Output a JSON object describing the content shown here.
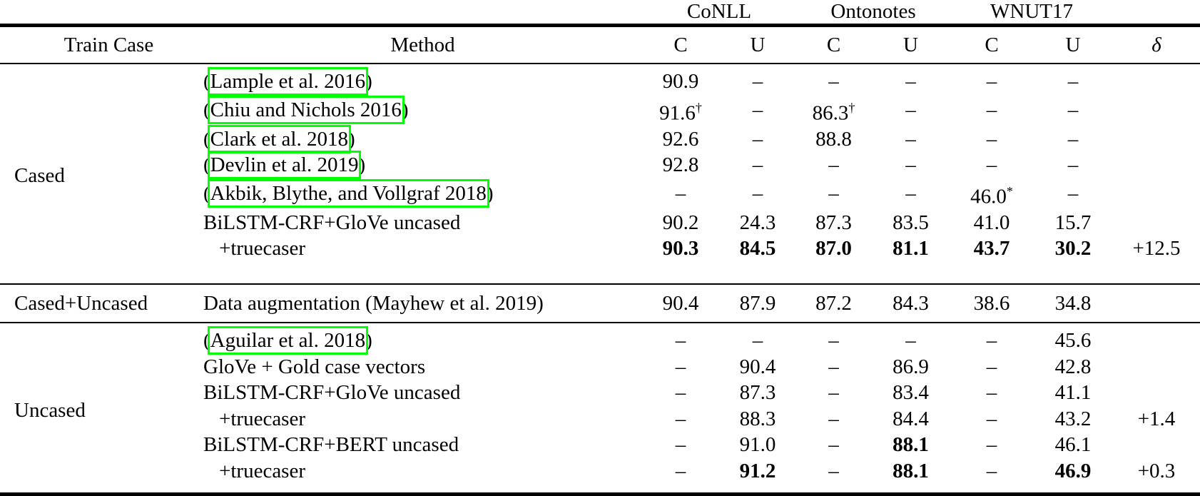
{
  "accent_colors": {
    "citation_link_box": "#00ff00",
    "rule_color": "#000000"
  },
  "table": {
    "groups": [
      "CoNLL",
      "Ontonotes",
      "WNUT17"
    ],
    "headers": [
      "Train Case",
      "Method",
      "C",
      "U",
      "C",
      "U",
      "C",
      "U",
      "δ"
    ],
    "missing_value_glyph": "–",
    "sections": [
      {
        "train_case": "Cased",
        "rows": [
          {
            "method": {
              "pre": "(",
              "link": "Lample et al. 2016",
              "post": ")"
            },
            "values": [
              "90.9",
              "–",
              "–",
              "–",
              "–",
              "–"
            ],
            "delta": ""
          },
          {
            "method": {
              "pre": "(",
              "link": "Chiu and Nichols 2016",
              "post": ")"
            },
            "values": [
              {
                "v": "91.6",
                "sup": "†"
              },
              "–",
              {
                "v": "86.3",
                "sup": "†"
              },
              "–",
              "–",
              "–"
            ],
            "delta": ""
          },
          {
            "method": {
              "pre": "(",
              "link": "Clark et al. 2018",
              "post": ")"
            },
            "values": [
              "92.6",
              "–",
              "88.8",
              "–",
              "–",
              "–"
            ],
            "delta": ""
          },
          {
            "method": {
              "pre": "(",
              "link": "Devlin et al. 2019",
              "post": ")"
            },
            "values": [
              "92.8",
              "–",
              "–",
              "–",
              "–",
              "–"
            ],
            "delta": ""
          },
          {
            "method": {
              "pre": "(",
              "link": "Akbik, Blythe, and Vollgraf 2018",
              "post": ")"
            },
            "values": [
              "–",
              "–",
              "–",
              "–",
              {
                "v": "46.0",
                "sup": "*"
              },
              "–"
            ],
            "delta": ""
          },
          {
            "method": "BiLSTM-CRF+GloVe uncased",
            "values": [
              "90.2",
              "24.3",
              "87.3",
              "83.5",
              "41.0",
              "15.7"
            ],
            "delta": ""
          },
          {
            "method": "+truecaser",
            "indent": true,
            "values": [
              {
                "v": "90.3",
                "b": 1
              },
              {
                "v": "84.5",
                "b": 1
              },
              {
                "v": "87.0",
                "b": 1
              },
              {
                "v": "81.1",
                "b": 1
              },
              {
                "v": "43.7",
                "b": 1
              },
              {
                "v": "30.2",
                "b": 1
              }
            ],
            "delta": "+12.5"
          }
        ]
      },
      {
        "train_case": "Cased+Uncased",
        "rows": [
          {
            "method": "Data augmentation (Mayhew et al. 2019)",
            "values": [
              "90.4",
              "87.9",
              "87.2",
              "84.3",
              "38.6",
              "34.8"
            ],
            "delta": ""
          }
        ]
      },
      {
        "train_case": "Uncased",
        "rows": [
          {
            "method": {
              "pre": "(",
              "link": "Aguilar et al. 2018",
              "post": ")"
            },
            "values": [
              "–",
              "–",
              "–",
              "–",
              "–",
              "45.6"
            ],
            "delta": ""
          },
          {
            "method": "GloVe + Gold case vectors",
            "values": [
              "–",
              "90.4",
              "–",
              "86.9",
              "–",
              "42.8"
            ],
            "delta": ""
          },
          {
            "method": "BiLSTM-CRF+GloVe uncased",
            "values": [
              "–",
              "87.3",
              "–",
              "83.4",
              "–",
              "41.1"
            ],
            "delta": ""
          },
          {
            "method": "+truecaser",
            "indent": true,
            "values": [
              "–",
              "88.3",
              "–",
              "84.4",
              "–",
              "43.2"
            ],
            "delta": "+1.4"
          },
          {
            "method": "BiLSTM-CRF+BERT uncased",
            "values": [
              "–",
              "91.0",
              "–",
              {
                "v": "88.1",
                "b": 1
              },
              "–",
              "46.1"
            ],
            "delta": ""
          },
          {
            "method": "+truecaser",
            "indent": true,
            "values": [
              "–",
              {
                "v": "91.2",
                "b": 1
              },
              "–",
              {
                "v": "88.1",
                "b": 1
              },
              "–",
              {
                "v": "46.9",
                "b": 1
              }
            ],
            "delta": "+0.3"
          }
        ]
      }
    ]
  }
}
